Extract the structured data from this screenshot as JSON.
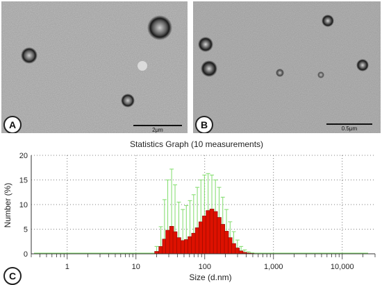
{
  "panels": [
    {
      "letter": "A",
      "scale_label": "2μm"
    },
    {
      "letter": "B",
      "scale_label": "0.5μm"
    }
  ],
  "panel_c": {
    "letter": "C"
  },
  "colors": {
    "bar_fill": "#dd1100",
    "error_bar": "#7fdc6a",
    "micrograph_bg": "#a7a7a7"
  },
  "chart_data": {
    "type": "bar",
    "title": "Statistics Graph (10 measurements)",
    "xlabel": "Size (d.nm)",
    "ylabel": "Number (%)",
    "x_scale": "log",
    "xlim": [
      0.3,
      30000
    ],
    "ylim": [
      0,
      20
    ],
    "x_ticks": [
      1,
      10,
      100,
      1000,
      10000
    ],
    "x_tick_labels": [
      "1",
      "10",
      "100",
      "1,000",
      "10,000"
    ],
    "y_ticks": [
      0,
      5,
      10,
      15,
      20
    ],
    "y_tick_labels": [
      "0",
      "5",
      "10",
      "15",
      "20"
    ],
    "grid": true,
    "x": [
      20,
      23,
      26,
      29,
      33,
      37,
      42,
      48,
      54,
      61,
      69,
      78,
      88,
      99,
      112,
      127,
      143,
      162,
      183,
      207,
      234,
      264,
      299,
      338,
      382,
      432,
      488,
      550
    ],
    "values": [
      0.5,
      1.5,
      3.0,
      4.8,
      5.6,
      4.5,
      3.3,
      2.7,
      2.9,
      3.5,
      4.2,
      5.3,
      6.5,
      7.7,
      8.8,
      9.1,
      8.6,
      7.4,
      6.0,
      4.6,
      3.3,
      2.1,
      1.2,
      0.6,
      0.3,
      0.15,
      0.08,
      0.03
    ],
    "error_upper": [
      1.5,
      5.5,
      11.0,
      15.0,
      17.2,
      14.0,
      10.5,
      9.0,
      9.8,
      10.8,
      12.0,
      13.5,
      15.0,
      16.0,
      16.3,
      16.0,
      15.0,
      13.5,
      11.5,
      9.0,
      6.5,
      4.5,
      2.8,
      1.5,
      0.8,
      0.4,
      0.2,
      0.1
    ]
  }
}
